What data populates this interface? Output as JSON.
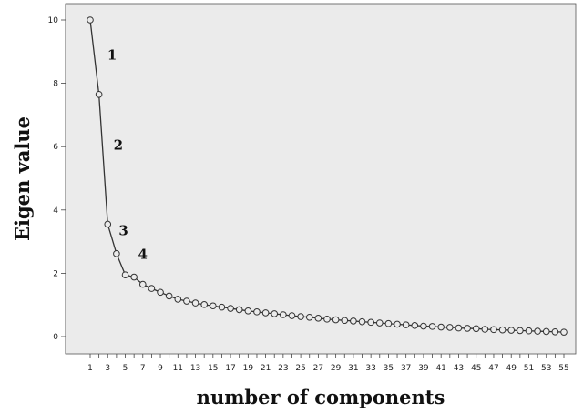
{
  "chart_data": {
    "type": "line",
    "title": "",
    "xlabel": "number of components",
    "ylabel": "Eigen value",
    "ylim": [
      0,
      10
    ],
    "yticks": [
      0,
      2,
      4,
      6,
      8,
      10
    ],
    "xticks": [
      1,
      3,
      5,
      7,
      9,
      11,
      13,
      15,
      17,
      19,
      21,
      23,
      25,
      27,
      29,
      31,
      33,
      35,
      37,
      39,
      41,
      43,
      45,
      47,
      49,
      51,
      53,
      55
    ],
    "x": [
      1,
      2,
      3,
      4,
      5,
      6,
      7,
      8,
      9,
      10,
      11,
      12,
      13,
      14,
      15,
      16,
      17,
      18,
      19,
      20,
      21,
      22,
      23,
      24,
      25,
      26,
      27,
      28,
      29,
      30,
      31,
      32,
      33,
      34,
      35,
      36,
      37,
      38,
      39,
      40,
      41,
      42,
      43,
      44,
      45,
      46,
      47,
      48,
      49,
      50,
      51,
      52,
      53,
      54,
      55
    ],
    "series": [
      {
        "values": [
          10.0,
          7.65,
          3.55,
          2.62,
          1.95,
          1.88,
          1.65,
          1.52,
          1.4,
          1.28,
          1.18,
          1.12,
          1.06,
          1.01,
          0.97,
          0.93,
          0.89,
          0.85,
          0.81,
          0.78,
          0.75,
          0.72,
          0.69,
          0.66,
          0.63,
          0.61,
          0.58,
          0.55,
          0.53,
          0.51,
          0.49,
          0.47,
          0.45,
          0.43,
          0.41,
          0.39,
          0.37,
          0.35,
          0.33,
          0.32,
          0.3,
          0.29,
          0.27,
          0.26,
          0.25,
          0.23,
          0.22,
          0.21,
          0.2,
          0.19,
          0.18,
          0.17,
          0.16,
          0.15,
          0.14
        ]
      }
    ],
    "annotations": [
      {
        "text": "1",
        "x": 3.5,
        "y": 8.75
      },
      {
        "text": "2",
        "x": 4.2,
        "y": 5.9
      },
      {
        "text": "3",
        "x": 4.8,
        "y": 3.2
      },
      {
        "text": "4",
        "x": 7.0,
        "y": 2.45
      }
    ],
    "grid": false,
    "colors": {
      "plot_background": "#ebebeb",
      "line": "#333333",
      "marker_stroke": "#333333",
      "marker_fill": "#ebebeb"
    }
  }
}
